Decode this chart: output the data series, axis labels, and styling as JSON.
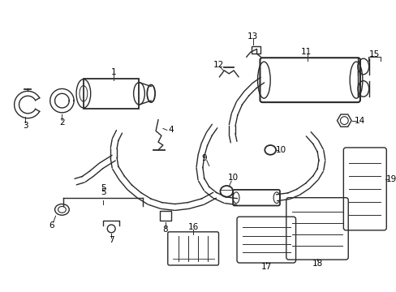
{
  "bg_color": "#ffffff",
  "line_color": "#2a2a2a",
  "label_color": "#000000",
  "figsize": [
    4.89,
    3.6
  ],
  "dpi": 100
}
